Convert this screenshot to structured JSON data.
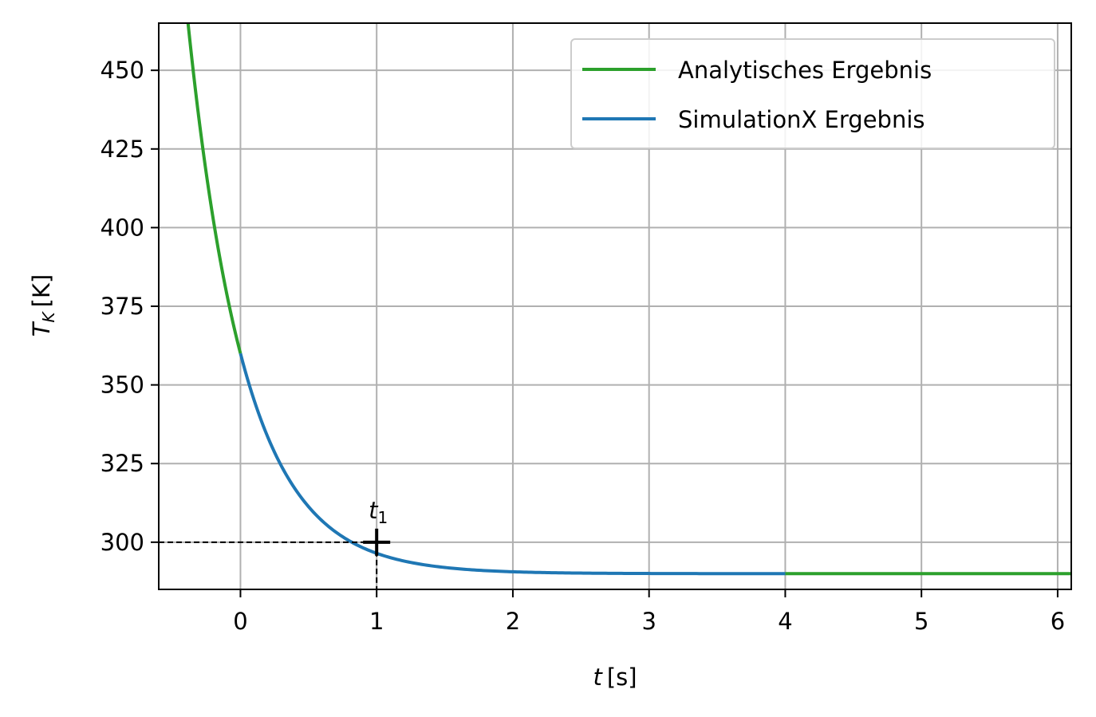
{
  "chart_data": {
    "type": "line",
    "xlabel": {
      "symbol": "t",
      "unit": "[s]"
    },
    "ylabel": {
      "symbol": "T",
      "subscript": "K",
      "unit": "[K]"
    },
    "xlim": [
      -0.6,
      6.1
    ],
    "ylim": [
      285,
      465
    ],
    "xticks": [
      "0",
      "1",
      "2",
      "3",
      "4",
      "5",
      "6"
    ],
    "yticks": [
      "300",
      "325",
      "350",
      "375",
      "400",
      "425",
      "450"
    ],
    "grid": true,
    "legend_position": "top-right",
    "series": [
      {
        "name": "Analytisches Ergebnis",
        "color": "#2ca02c",
        "model": {
          "T_inf": 290,
          "T0": 360,
          "tau": 0.42
        },
        "segments": [
          [
            -0.6,
            0
          ],
          [
            4,
            6.1
          ]
        ]
      },
      {
        "name": "SimulationX Ergebnis",
        "color": "#1f77b4",
        "model": {
          "T_inf": 290,
          "T0": 360,
          "tau": 0.42
        },
        "segments": [
          [
            0,
            4
          ]
        ]
      }
    ],
    "annotations": [
      {
        "label": {
          "symbol": "t",
          "subscript": "1"
        },
        "x": 1,
        "y": 300,
        "marker": "+",
        "guides": "dashed"
      }
    ]
  }
}
